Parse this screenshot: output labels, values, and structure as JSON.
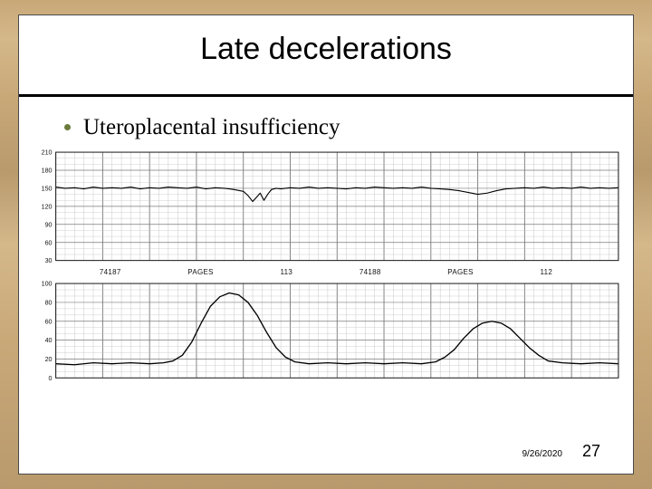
{
  "title": "Late decelerations",
  "bullet": "Uteroplacental insufficiency",
  "footer": {
    "date": "9/26/2020",
    "page": "27"
  },
  "mid_labels": {
    "left_id": "74187",
    "left_rate": "113",
    "right_id": "74188",
    "right_rate": "112",
    "page_word": "PAGES"
  },
  "styling": {
    "bg_wood_colors": [
      "#c9a878",
      "#d4b88a",
      "#b89a6d"
    ],
    "slide_bg": "#ffffff",
    "slide_border": "#4a4a4a",
    "title_fontsize": 34,
    "title_color": "#000000",
    "divider_color": "#000000",
    "bullet_dot_color": "#6a7a3a",
    "bullet_fontsize": 25,
    "bullet_font": "Georgia serif",
    "footer_date_fontsize": 10,
    "footer_page_fontsize": 18
  },
  "fhr_strip": {
    "type": "line",
    "width_units": 600,
    "ylim": [
      30,
      210
    ],
    "ytick_labels": [
      30,
      60,
      90,
      120,
      150,
      180,
      210
    ],
    "major_x_step": 50,
    "minor_x_step": 10,
    "grid_color": "#bdbdbd",
    "major_grid_color": "#7a7a7a",
    "trace_color": "#000000",
    "trace_width": 1.1,
    "background": "#ffffff",
    "baseline": 150,
    "points": [
      [
        0,
        152
      ],
      [
        10,
        150
      ],
      [
        20,
        151
      ],
      [
        30,
        149
      ],
      [
        40,
        152
      ],
      [
        50,
        150
      ],
      [
        60,
        151
      ],
      [
        70,
        150
      ],
      [
        80,
        152
      ],
      [
        90,
        149
      ],
      [
        100,
        151
      ],
      [
        110,
        150
      ],
      [
        120,
        152
      ],
      [
        130,
        151
      ],
      [
        140,
        150
      ],
      [
        150,
        152
      ],
      [
        160,
        149
      ],
      [
        170,
        151
      ],
      [
        180,
        150
      ],
      [
        190,
        148
      ],
      [
        200,
        145
      ],
      [
        205,
        138
      ],
      [
        210,
        128
      ],
      [
        214,
        135
      ],
      [
        218,
        142
      ],
      [
        222,
        130
      ],
      [
        226,
        140
      ],
      [
        230,
        148
      ],
      [
        235,
        150
      ],
      [
        240,
        149
      ],
      [
        250,
        151
      ],
      [
        260,
        150
      ],
      [
        270,
        152
      ],
      [
        280,
        150
      ],
      [
        290,
        151
      ],
      [
        300,
        150
      ],
      [
        310,
        149
      ],
      [
        320,
        151
      ],
      [
        330,
        150
      ],
      [
        340,
        152
      ],
      [
        350,
        151
      ],
      [
        360,
        150
      ],
      [
        370,
        151
      ],
      [
        380,
        150
      ],
      [
        390,
        152
      ],
      [
        400,
        150
      ],
      [
        410,
        149
      ],
      [
        420,
        148
      ],
      [
        430,
        146
      ],
      [
        440,
        143
      ],
      [
        450,
        140
      ],
      [
        460,
        142
      ],
      [
        470,
        146
      ],
      [
        480,
        149
      ],
      [
        490,
        150
      ],
      [
        500,
        151
      ],
      [
        510,
        150
      ],
      [
        520,
        152
      ],
      [
        530,
        150
      ],
      [
        540,
        151
      ],
      [
        550,
        150
      ],
      [
        560,
        152
      ],
      [
        570,
        150
      ],
      [
        580,
        151
      ],
      [
        590,
        150
      ],
      [
        600,
        151
      ]
    ]
  },
  "toco_strip": {
    "type": "line",
    "width_units": 600,
    "ylim": [
      0,
      100
    ],
    "ytick_labels": [
      0,
      20,
      40,
      60,
      80,
      100
    ],
    "major_x_step": 50,
    "minor_x_step": 10,
    "grid_color": "#bdbdbd",
    "major_grid_color": "#7a7a7a",
    "trace_color": "#000000",
    "trace_width": 1.3,
    "background": "#ffffff",
    "baseline": 15,
    "points": [
      [
        0,
        15
      ],
      [
        20,
        14
      ],
      [
        40,
        16
      ],
      [
        60,
        15
      ],
      [
        80,
        16
      ],
      [
        100,
        15
      ],
      [
        115,
        16
      ],
      [
        125,
        18
      ],
      [
        135,
        24
      ],
      [
        145,
        38
      ],
      [
        155,
        58
      ],
      [
        165,
        76
      ],
      [
        175,
        86
      ],
      [
        185,
        90
      ],
      [
        195,
        88
      ],
      [
        205,
        80
      ],
      [
        215,
        66
      ],
      [
        225,
        48
      ],
      [
        235,
        32
      ],
      [
        245,
        22
      ],
      [
        255,
        17
      ],
      [
        270,
        15
      ],
      [
        290,
        16
      ],
      [
        310,
        15
      ],
      [
        330,
        16
      ],
      [
        350,
        15
      ],
      [
        370,
        16
      ],
      [
        390,
        15
      ],
      [
        405,
        17
      ],
      [
        415,
        22
      ],
      [
        425,
        30
      ],
      [
        435,
        42
      ],
      [
        445,
        52
      ],
      [
        455,
        58
      ],
      [
        465,
        60
      ],
      [
        475,
        58
      ],
      [
        485,
        52
      ],
      [
        495,
        42
      ],
      [
        505,
        32
      ],
      [
        515,
        24
      ],
      [
        525,
        18
      ],
      [
        540,
        16
      ],
      [
        560,
        15
      ],
      [
        580,
        16
      ],
      [
        600,
        15
      ]
    ]
  }
}
